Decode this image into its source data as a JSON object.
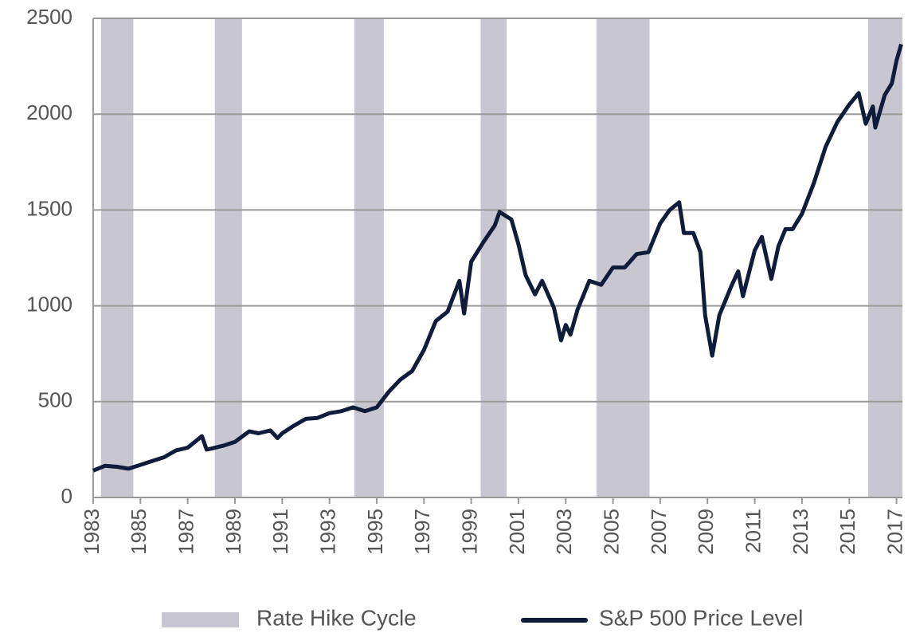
{
  "chart_data": {
    "type": "line",
    "x": [
      1983.0,
      1983.5,
      1984.0,
      1984.5,
      1985.0,
      1985.5,
      1986.0,
      1986.5,
      1987.0,
      1987.6,
      1987.8,
      1988.0,
      1988.5,
      1989.0,
      1989.6,
      1990.0,
      1990.5,
      1990.8,
      1991.0,
      1991.5,
      1992.0,
      1992.5,
      1993.0,
      1993.5,
      1994.0,
      1994.5,
      1995.0,
      1995.5,
      1996.0,
      1996.5,
      1997.0,
      1997.5,
      1998.0,
      1998.5,
      1998.7,
      1999.0,
      1999.5,
      2000.0,
      2000.2,
      2000.7,
      2001.0,
      2001.3,
      2001.7,
      2002.0,
      2002.5,
      2002.8,
      2003.0,
      2003.2,
      2003.5,
      2004.0,
      2004.5,
      2005.0,
      2005.5,
      2006.0,
      2006.5,
      2007.0,
      2007.4,
      2007.8,
      2008.0,
      2008.4,
      2008.7,
      2008.9,
      2009.2,
      2009.5,
      2010.0,
      2010.3,
      2010.5,
      2011.0,
      2011.3,
      2011.7,
      2012.0,
      2012.3,
      2012.6,
      2013.0,
      2013.5,
      2014.0,
      2014.5,
      2015.0,
      2015.4,
      2015.7,
      2016.0,
      2016.1,
      2016.5,
      2016.8,
      2017.0,
      2017.2
    ],
    "series": [
      {
        "name": "S&P 500 Price Level",
        "color": "#0f1d3a",
        "values": [
          140,
          165,
          160,
          150,
          170,
          190,
          210,
          245,
          260,
          320,
          250,
          255,
          270,
          290,
          345,
          335,
          350,
          310,
          335,
          375,
          410,
          415,
          440,
          450,
          470,
          450,
          470,
          550,
          615,
          660,
          770,
          920,
          970,
          1130,
          960,
          1230,
          1330,
          1420,
          1490,
          1450,
          1320,
          1160,
          1060,
          1130,
          990,
          820,
          900,
          850,
          980,
          1130,
          1110,
          1200,
          1200,
          1270,
          1280,
          1430,
          1500,
          1540,
          1380,
          1380,
          1280,
          950,
          740,
          950,
          1100,
          1180,
          1050,
          1290,
          1360,
          1140,
          1310,
          1400,
          1400,
          1480,
          1640,
          1830,
          1960,
          2050,
          2110,
          1950,
          2040,
          1930,
          2100,
          2160,
          2280,
          2365
        ]
      }
    ],
    "shaded_regions": {
      "name": "Rate Hike Cycle",
      "color": "#c8c7d1",
      "ranges": [
        [
          1983.33,
          1984.7
        ],
        [
          1988.15,
          1989.3
        ],
        [
          1994.05,
          1995.3
        ],
        [
          1999.4,
          2000.5
        ],
        [
          2004.3,
          2006.55
        ],
        [
          2015.8,
          2017.25
        ]
      ]
    },
    "xlim": [
      1983,
      2017.25
    ],
    "xticks": [
      1983,
      1985,
      1987,
      1989,
      1991,
      1993,
      1995,
      1997,
      1999,
      2001,
      2003,
      2005,
      2007,
      2009,
      2011,
      2013,
      2015,
      2017
    ],
    "ylim": [
      0,
      2500
    ],
    "yticks": [
      0,
      500,
      1000,
      1500,
      2000,
      2500
    ],
    "grid": true,
    "legend": "bottom"
  }
}
